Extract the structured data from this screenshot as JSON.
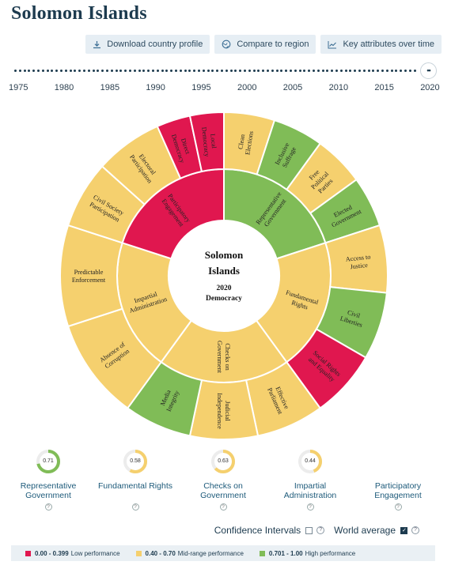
{
  "page": {
    "title": "Solomon Islands"
  },
  "toolbar": {
    "download_label": "Download country profile",
    "compare_label": "Compare to region",
    "key_label": "Key attributes over time"
  },
  "timeline": {
    "years": [
      "1975",
      "1980",
      "1985",
      "1990",
      "1995",
      "2000",
      "2005",
      "2010",
      "2015",
      "2020"
    ],
    "handle_glyph": "••"
  },
  "colors": {
    "low": "#e0174f",
    "mid": "#f5d06e",
    "high": "#80bc57"
  },
  "wheel": {
    "center": {
      "line1": "Solomon",
      "line2": "Islands",
      "line3": "2020",
      "line4": "Democracy"
    },
    "attributes": [
      {
        "name": "Representative Government",
        "lines": [
          "Representative",
          "Government"
        ],
        "level": "high"
      },
      {
        "name": "Fundamental Rights",
        "lines": [
          "Fundamental",
          "Rights"
        ],
        "level": "mid"
      },
      {
        "name": "Checks on Government",
        "lines": [
          "Checks on",
          "Government"
        ],
        "level": "mid"
      },
      {
        "name": "Impartial Administration",
        "lines": [
          "Impartial",
          "Administration"
        ],
        "level": "mid"
      },
      {
        "name": "Participatory Engagement",
        "lines": [
          "Participatory",
          "Engagement"
        ],
        "level": "low"
      }
    ],
    "subattributes": [
      {
        "lines": [
          "Clean",
          "Elections"
        ],
        "level": "mid"
      },
      {
        "lines": [
          "Inclusive",
          "Suffrage"
        ],
        "level": "high"
      },
      {
        "lines": [
          "Free",
          "Political",
          "Parties"
        ],
        "level": "mid"
      },
      {
        "lines": [
          "Elected",
          "Government"
        ],
        "level": "high"
      },
      {
        "lines": [
          "Access to",
          "Justice"
        ],
        "level": "mid"
      },
      {
        "lines": [
          "Civil",
          "Liberties"
        ],
        "level": "high"
      },
      {
        "lines": [
          "Social Rights",
          "and Equality"
        ],
        "level": "low"
      },
      {
        "lines": [
          "Effective",
          "Parliament"
        ],
        "level": "mid"
      },
      {
        "lines": [
          "Judicial",
          "Independence"
        ],
        "level": "mid"
      },
      {
        "lines": [
          "Media",
          "Integrity"
        ],
        "level": "high"
      },
      {
        "lines": [
          "Absence of",
          "Corruption"
        ],
        "level": "mid"
      },
      {
        "lines": [
          "Predictable",
          "Enforcement"
        ],
        "level": "mid"
      },
      {
        "lines": [
          "Civil Society",
          "Participation"
        ],
        "level": "mid"
      },
      {
        "lines": [
          "Electoral",
          "Participation"
        ],
        "level": "mid"
      },
      {
        "lines": [
          "Direct",
          "Democracy"
        ],
        "level": "low"
      },
      {
        "lines": [
          "Local",
          "Democracy"
        ],
        "level": "low"
      }
    ]
  },
  "summary": [
    {
      "value": 0.71,
      "text": "0.71",
      "label": "Representative Government",
      "label1": "Representative",
      "label2": "Government",
      "level": "high"
    },
    {
      "value": 0.58,
      "text": "0.58",
      "label": "Fundamental Rights",
      "label1": "Fundamental Rights",
      "label2": "",
      "level": "mid"
    },
    {
      "value": 0.63,
      "text": "0.63",
      "label": "Checks on Government",
      "label1": "Checks on",
      "label2": "Government",
      "level": "mid"
    },
    {
      "value": 0.44,
      "text": "0.44",
      "label": "Impartial Administration",
      "label1": "Impartial",
      "label2": "Administration",
      "level": "mid"
    },
    {
      "value": null,
      "text": "",
      "label": "Participatory Engagement",
      "label1": "Participatory",
      "label2": "Engagement",
      "level": "low"
    }
  ],
  "options": {
    "confidence_label": "Confidence Intervals",
    "confidence_checked": false,
    "world_label": "World average",
    "world_checked": true
  },
  "legend": {
    "low_range": "0.00 - 0.399",
    "low_text": "Low performance",
    "mid_range": "0.40 - 0.70",
    "mid_text": "Mid-range performance",
    "high_range": "0.701 - 1.00",
    "high_text": "High performance"
  }
}
